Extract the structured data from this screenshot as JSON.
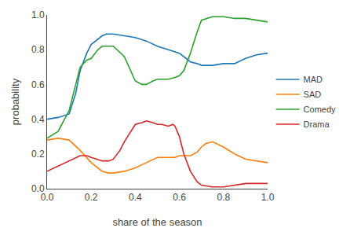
{
  "chart_data": {
    "type": "line",
    "xlabel": "share of the season",
    "ylabel": "probability",
    "xlim": [
      0.0,
      1.0
    ],
    "ylim": [
      0.0,
      1.0
    ],
    "xticks": [
      {
        "value": 0,
        "label": "0.0"
      },
      0.2,
      0.4,
      0.6,
      0.8,
      {
        "value": 1,
        "label": "1.0"
      }
    ],
    "yticks": [
      {
        "value": 0,
        "label": "0.0"
      },
      0.2,
      0.4,
      0.6,
      0.8,
      {
        "value": 1,
        "label": "1.0"
      }
    ],
    "grid": false,
    "legend": "right",
    "series": [
      {
        "name": "MAD",
        "color": "#1f77b4",
        "x": [
          0.0,
          0.05,
          0.1,
          0.13,
          0.15,
          0.18,
          0.2,
          0.25,
          0.27,
          0.3,
          0.35,
          0.4,
          0.45,
          0.5,
          0.55,
          0.6,
          0.63,
          0.65,
          0.68,
          0.7,
          0.75,
          0.8,
          0.85,
          0.9,
          0.95,
          1.0
        ],
        "values": [
          0.4,
          0.41,
          0.43,
          0.55,
          0.68,
          0.78,
          0.83,
          0.88,
          0.89,
          0.89,
          0.88,
          0.87,
          0.85,
          0.82,
          0.8,
          0.78,
          0.75,
          0.73,
          0.72,
          0.71,
          0.71,
          0.72,
          0.72,
          0.75,
          0.77,
          0.78
        ]
      },
      {
        "name": "SAD",
        "color": "#ff7f0e",
        "x": [
          0.0,
          0.05,
          0.1,
          0.15,
          0.2,
          0.25,
          0.28,
          0.3,
          0.35,
          0.4,
          0.45,
          0.5,
          0.55,
          0.58,
          0.6,
          0.63,
          0.65,
          0.68,
          0.7,
          0.72,
          0.75,
          0.8,
          0.85,
          0.9,
          0.95,
          1.0
        ],
        "values": [
          0.28,
          0.29,
          0.28,
          0.22,
          0.15,
          0.1,
          0.09,
          0.09,
          0.1,
          0.12,
          0.15,
          0.18,
          0.18,
          0.18,
          0.19,
          0.19,
          0.19,
          0.21,
          0.24,
          0.26,
          0.27,
          0.24,
          0.2,
          0.17,
          0.16,
          0.15
        ]
      },
      {
        "name": "Comedy",
        "color": "#2ca02c",
        "x": [
          0.0,
          0.05,
          0.1,
          0.13,
          0.15,
          0.18,
          0.2,
          0.23,
          0.25,
          0.27,
          0.3,
          0.35,
          0.38,
          0.4,
          0.43,
          0.45,
          0.48,
          0.5,
          0.53,
          0.55,
          0.58,
          0.6,
          0.62,
          0.65,
          0.68,
          0.7,
          0.75,
          0.8,
          0.85,
          0.9,
          0.95,
          1.0
        ],
        "values": [
          0.29,
          0.33,
          0.45,
          0.6,
          0.7,
          0.74,
          0.75,
          0.8,
          0.82,
          0.82,
          0.82,
          0.76,
          0.68,
          0.62,
          0.6,
          0.6,
          0.62,
          0.63,
          0.63,
          0.63,
          0.64,
          0.65,
          0.68,
          0.78,
          0.9,
          0.97,
          0.99,
          0.99,
          0.98,
          0.98,
          0.97,
          0.96
        ]
      },
      {
        "name": "Drama",
        "color": "#d62728",
        "x": [
          0.0,
          0.05,
          0.1,
          0.15,
          0.18,
          0.2,
          0.25,
          0.28,
          0.3,
          0.33,
          0.35,
          0.38,
          0.4,
          0.43,
          0.45,
          0.48,
          0.5,
          0.52,
          0.55,
          0.57,
          0.58,
          0.6,
          0.62,
          0.65,
          0.68,
          0.7,
          0.75,
          0.8,
          0.85,
          0.9,
          0.95,
          1.0
        ],
        "values": [
          0.1,
          0.13,
          0.16,
          0.19,
          0.19,
          0.18,
          0.16,
          0.16,
          0.17,
          0.22,
          0.27,
          0.33,
          0.37,
          0.38,
          0.39,
          0.38,
          0.37,
          0.37,
          0.36,
          0.37,
          0.36,
          0.3,
          0.2,
          0.1,
          0.04,
          0.02,
          0.01,
          0.01,
          0.02,
          0.03,
          0.03,
          0.03
        ]
      }
    ]
  }
}
